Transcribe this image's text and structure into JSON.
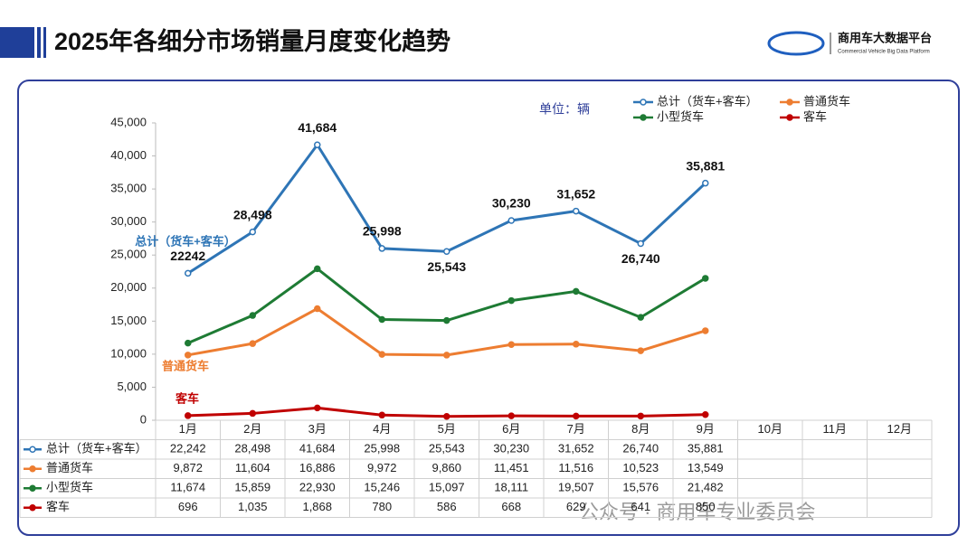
{
  "header": {
    "title": "2025年各细分市场销量月度变化趋势",
    "logo_title": "商用车大数据平台",
    "logo_subtitle": "Commercial Vehicle Big Data Platform"
  },
  "chart_data": {
    "type": "line",
    "unit": "单位：辆",
    "categories": [
      "1月",
      "2月",
      "3月",
      "4月",
      "5月",
      "6月",
      "7月",
      "8月",
      "9月",
      "10月",
      "11月",
      "12月"
    ],
    "series": [
      {
        "name": "总计（货车+客车）",
        "color": "#2e75b6",
        "marker": "open",
        "values": [
          22242,
          28498,
          41684,
          25998,
          25543,
          30230,
          31652,
          26740,
          35881,
          null,
          null,
          null
        ],
        "value_labels": [
          "22,242",
          "28,498",
          "41,684",
          "25,998",
          "25,543",
          "30,230",
          "31,652",
          "26,740",
          "35,881",
          null,
          null,
          null
        ],
        "point_labels": [
          "22242",
          "28,498",
          "41,684",
          "25,998",
          "25,543",
          "30,230",
          "31,652",
          "26,740",
          "35,881",
          null,
          null,
          null
        ]
      },
      {
        "name": "普通货车",
        "color": "#ed7d31",
        "marker": "filled",
        "values": [
          9872,
          11604,
          16886,
          9972,
          9860,
          11451,
          11516,
          10523,
          13549,
          null,
          null,
          null
        ],
        "value_labels": [
          "9,872",
          "11,604",
          "16,886",
          "9,972",
          "9,860",
          "11,451",
          "11,516",
          "10,523",
          "13,549",
          null,
          null,
          null
        ]
      },
      {
        "name": "小型货车",
        "color": "#1e7b34",
        "marker": "filled",
        "values": [
          11674,
          15859,
          22930,
          15246,
          15097,
          18111,
          19507,
          15576,
          21482,
          null,
          null,
          null
        ],
        "value_labels": [
          "11,674",
          "15,859",
          "22,930",
          "15,246",
          "15,097",
          "18,111",
          "19,507",
          "15,576",
          "21,482",
          null,
          null,
          null
        ]
      },
      {
        "name": "客车",
        "color": "#c00000",
        "marker": "filled",
        "values": [
          696,
          1035,
          1868,
          780,
          586,
          668,
          629,
          641,
          850,
          null,
          null,
          null
        ],
        "value_labels": [
          "696",
          "1,035",
          "1,868",
          "780",
          "586",
          "668",
          "629",
          "641",
          "850",
          null,
          null,
          null
        ]
      }
    ],
    "ylim": [
      0,
      45000
    ],
    "yticks": [
      0,
      {
        "value": 5000,
        "label": "5,000"
      },
      {
        "value": 10000,
        "label": "10,000"
      },
      {
        "value": 15000,
        "label": "15,000"
      },
      {
        "value": 20000,
        "label": "20,000"
      },
      {
        "value": 25000,
        "label": "25,000"
      },
      {
        "value": 30000,
        "label": "30,000"
      },
      {
        "value": 35000,
        "label": "35,000"
      },
      {
        "value": 40000,
        "label": "40,000"
      },
      {
        "value": 45000,
        "label": "45,000"
      }
    ],
    "legend": "top-right"
  },
  "watermark": "公众号 · 商用车专业委员会"
}
